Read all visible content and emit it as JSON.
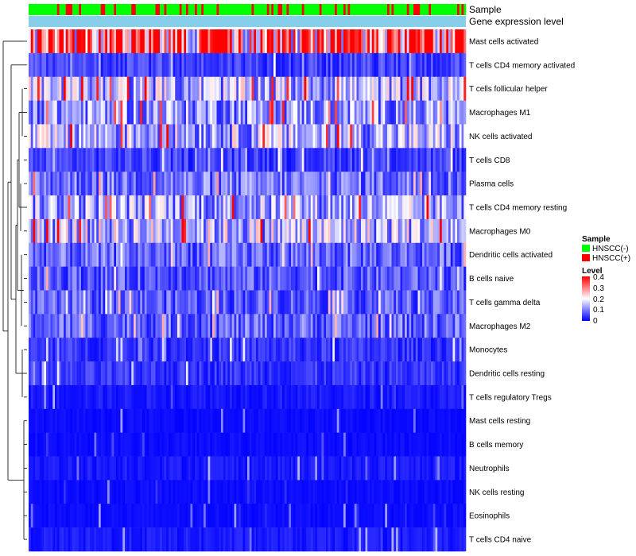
{
  "chart_data": {
    "type": "heatmap",
    "annotation_rows": [
      "Sample",
      "Gene expression level"
    ],
    "rows": [
      "Mast cells activated",
      "T cells CD4 memory activated",
      "T cells follicular helper",
      "Macrophages M1",
      "NK cells activated",
      "T cells CD8",
      "Plasma cells",
      "T cells CD4 memory resting",
      "Macrophages M0",
      "Dendritic cells activated",
      "B cells naive",
      "T cells gamma delta",
      "Macrophages M2",
      "Monocytes",
      "Dendritic cells resting",
      "T cells regulatory  Tregs",
      "Mast cells resting",
      "B cells memory",
      "Neutrophils",
      "NK cells resting",
      "Eosinophils",
      "T cells CD4 naive"
    ],
    "row_mean_level": [
      0.33,
      0.05,
      0.14,
      0.12,
      0.14,
      0.05,
      0.09,
      0.13,
      0.15,
      0.08,
      0.07,
      0.07,
      0.08,
      0.04,
      0.04,
      0.02,
      0.01,
      0.01,
      0.02,
      0.01,
      0.01,
      0.02
    ],
    "n_samples": 200,
    "color_scale": {
      "min": 0,
      "max": 0.4,
      "low": "#0000ff",
      "mid": "#ffffff",
      "high": "#ff0000"
    },
    "legend": {
      "sample": {
        "title": "Sample",
        "items": [
          {
            "label": "HNSCC(-)",
            "color": "#00ff00"
          },
          {
            "label": "HNSCC(+)",
            "color": "#ff0000"
          }
        ]
      },
      "level": {
        "title": "Level",
        "ticks": [
          "0.4",
          "0.3",
          "0.2",
          "0.1",
          "0"
        ]
      }
    },
    "gene_expression_color": "#87ceeb"
  }
}
